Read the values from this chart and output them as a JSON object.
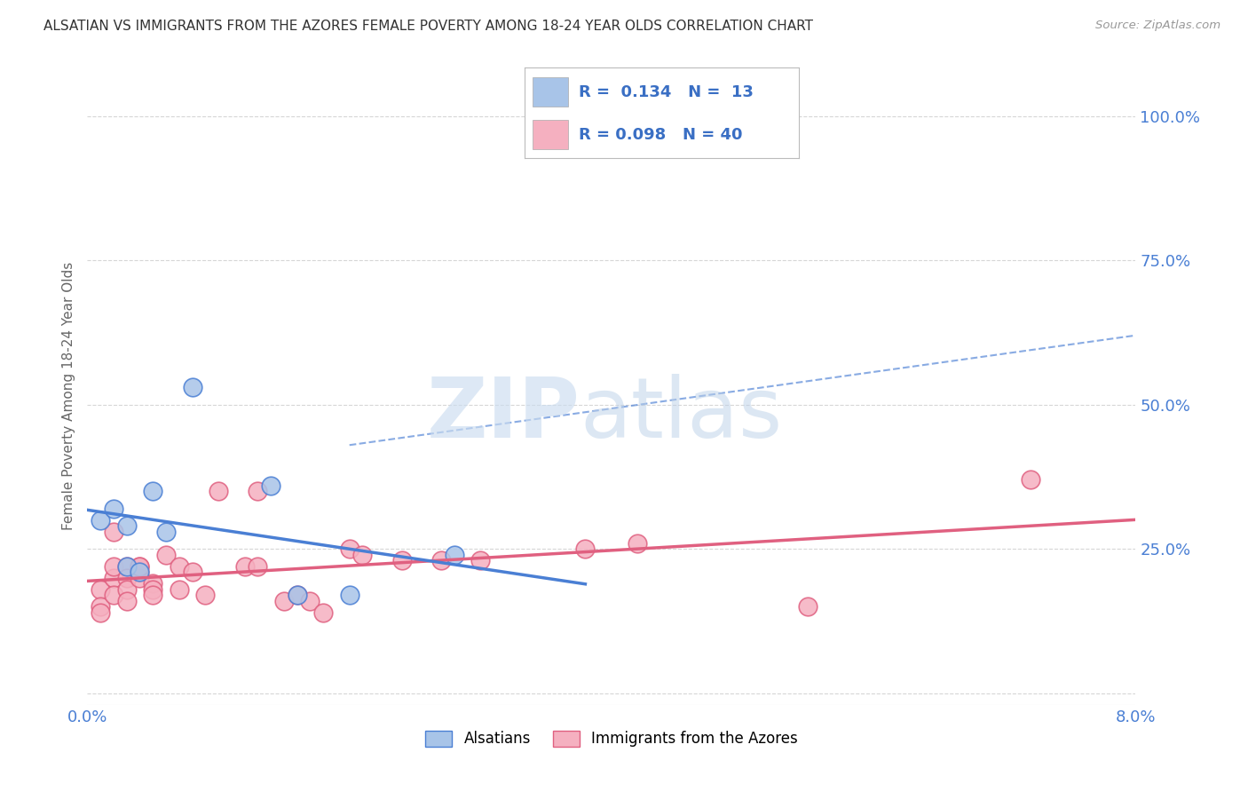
{
  "title": "ALSATIAN VS IMMIGRANTS FROM THE AZORES FEMALE POVERTY AMONG 18-24 YEAR OLDS CORRELATION CHART",
  "source": "Source: ZipAtlas.com",
  "ylabel": "Female Poverty Among 18-24 Year Olds",
  "alsatian_R": 0.134,
  "alsatian_N": 13,
  "azores_R": 0.098,
  "azores_N": 40,
  "alsatian_color": "#a8c4e8",
  "azores_color": "#f5b0c0",
  "alsatian_line_color": "#4a7fd4",
  "azores_line_color": "#e06080",
  "alsatian_x": [
    0.001,
    0.002,
    0.003,
    0.003,
    0.004,
    0.005,
    0.006,
    0.008,
    0.014,
    0.016,
    0.02,
    0.028,
    0.038
  ],
  "alsatian_y": [
    0.3,
    0.32,
    0.29,
    0.22,
    0.21,
    0.35,
    0.28,
    0.53,
    0.36,
    0.17,
    0.17,
    0.24,
    1.0
  ],
  "azores_x": [
    0.001,
    0.001,
    0.001,
    0.002,
    0.002,
    0.002,
    0.002,
    0.003,
    0.003,
    0.003,
    0.003,
    0.004,
    0.004,
    0.004,
    0.004,
    0.005,
    0.005,
    0.005,
    0.006,
    0.007,
    0.007,
    0.008,
    0.009,
    0.01,
    0.012,
    0.013,
    0.013,
    0.015,
    0.016,
    0.017,
    0.018,
    0.02,
    0.021,
    0.024,
    0.027,
    0.03,
    0.038,
    0.042,
    0.055,
    0.072
  ],
  "azores_y": [
    0.18,
    0.15,
    0.14,
    0.28,
    0.2,
    0.22,
    0.17,
    0.22,
    0.2,
    0.18,
    0.16,
    0.21,
    0.22,
    0.2,
    0.22,
    0.19,
    0.18,
    0.17,
    0.24,
    0.18,
    0.22,
    0.21,
    0.17,
    0.35,
    0.22,
    0.35,
    0.22,
    0.16,
    0.17,
    0.16,
    0.14,
    0.25,
    0.24,
    0.23,
    0.23,
    0.23,
    0.25,
    0.26,
    0.15,
    0.37
  ],
  "xlim": [
    0.0,
    0.08
  ],
  "ylim": [
    -0.02,
    1.05
  ],
  "yticks": [
    0.0,
    0.25,
    0.5,
    0.75,
    1.0
  ],
  "ytick_labels": [
    "",
    "25.0%",
    "50.0%",
    "75.0%",
    "100.0%"
  ],
  "xtick_positions": [
    0.0,
    0.02,
    0.04,
    0.06,
    0.08
  ],
  "xtick_labels": [
    "0.0%",
    "",
    "",
    "",
    "8.0%"
  ],
  "background_color": "#ffffff",
  "grid_color": "#cccccc",
  "tick_color": "#4a7fd4",
  "title_color": "#333333",
  "source_color": "#999999",
  "ylabel_color": "#666666"
}
